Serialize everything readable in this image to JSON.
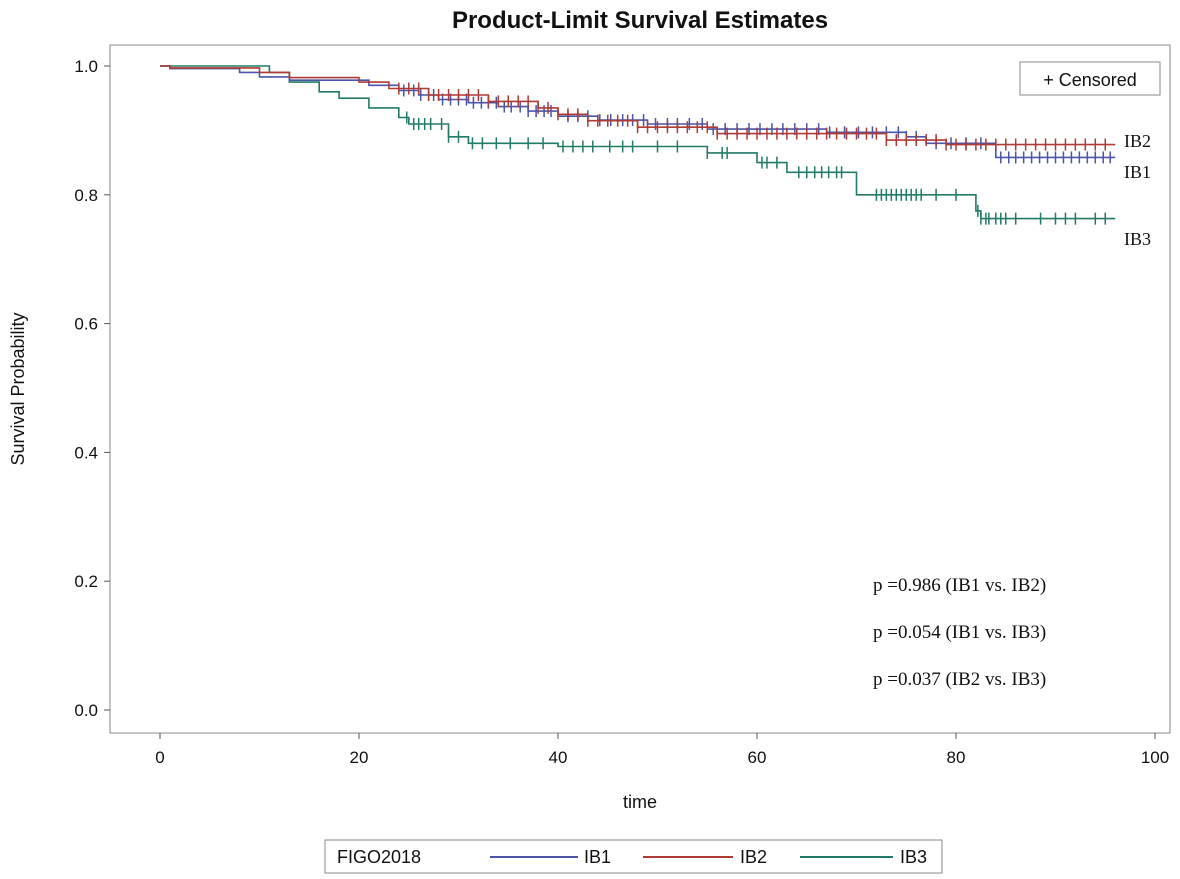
{
  "chart_data": {
    "type": "line",
    "title": "Product-Limit Survival Estimates",
    "xlabel": "time",
    "ylabel": "Survival Probability",
    "xlim": [
      0,
      100
    ],
    "ylim": [
      0,
      1
    ],
    "x_ticks": [
      0,
      20,
      40,
      60,
      80,
      100
    ],
    "x_tick_labels": [
      "0",
      "20",
      "40",
      "60",
      "80",
      "100"
    ],
    "y_ticks": [
      0,
      0.2,
      0.4,
      0.6,
      0.8,
      1.0
    ],
    "y_tick_labels": [
      "0.0",
      "0.2",
      "0.4",
      "0.6",
      "0.8",
      "1.0"
    ],
    "censored_legend": "+ Censored",
    "legend_title": "FIGO2018",
    "legend_placement": "bottom",
    "annotations": [
      "p =0.986 (IB1 vs. IB2)",
      "p =0.054 (IB1 vs. IB3)",
      "p =0.037 (IB2 vs. IB3)"
    ],
    "series": [
      {
        "name": "IB1",
        "color": "#4a55a8",
        "steps": [
          [
            0,
            1.0
          ],
          [
            1,
            0.996
          ],
          [
            8,
            0.99
          ],
          [
            10,
            0.983
          ],
          [
            13,
            0.978
          ],
          [
            21,
            0.97
          ],
          [
            24,
            0.962
          ],
          [
            26,
            0.955
          ],
          [
            28,
            0.948
          ],
          [
            31,
            0.943
          ],
          [
            34,
            0.937
          ],
          [
            37,
            0.93
          ],
          [
            40,
            0.922
          ],
          [
            44,
            0.916
          ],
          [
            49,
            0.91
          ],
          [
            55,
            0.902
          ],
          [
            67,
            0.897
          ],
          [
            75,
            0.89
          ],
          [
            77,
            0.88
          ],
          [
            84,
            0.858
          ],
          [
            96,
            0.858
          ]
        ],
        "censored": [
          24.5,
          25.5,
          26.2,
          27,
          27.5,
          28.4,
          29.2,
          30,
          30.8,
          31.5,
          32.3,
          33,
          33.8,
          34.6,
          35.3,
          36.2,
          37,
          37.8,
          38.6,
          39.3,
          41,
          42,
          43,
          44.2,
          45.3,
          46.5,
          47.5,
          48.6,
          49.8,
          51,
          52,
          53.2,
          54.5,
          55.6,
          56.8,
          58,
          59.2,
          60.3,
          61.5,
          62.6,
          63.8,
          65,
          66.2,
          67.3,
          68.8,
          70.2,
          71.6,
          73,
          74.2,
          75,
          76,
          78,
          79.5,
          81,
          82.5,
          84.5,
          85.3,
          86,
          86.8,
          87.6,
          88.4,
          89.2,
          90,
          90.8,
          91.6,
          92.4,
          93.2,
          94,
          94.8,
          95.5
        ]
      },
      {
        "name": "IB2",
        "color": "#b03a34",
        "steps": [
          [
            0,
            1.0
          ],
          [
            1,
            0.997
          ],
          [
            10,
            0.99
          ],
          [
            13,
            0.982
          ],
          [
            20,
            0.975
          ],
          [
            23,
            0.965
          ],
          [
            27,
            0.955
          ],
          [
            33,
            0.945
          ],
          [
            38,
            0.935
          ],
          [
            40,
            0.925
          ],
          [
            43,
            0.915
          ],
          [
            48,
            0.905
          ],
          [
            56,
            0.895
          ],
          [
            73,
            0.885
          ],
          [
            79,
            0.878
          ],
          [
            96,
            0.878
          ]
        ],
        "censored": [
          24,
          25,
          26,
          27,
          28,
          29,
          30,
          31,
          32,
          33,
          34,
          35,
          36,
          37,
          38,
          39,
          40,
          41,
          42,
          43,
          44,
          45,
          46,
          47,
          48,
          49,
          50,
          51,
          52,
          53,
          54,
          55,
          56,
          57,
          58,
          59,
          60,
          61,
          62,
          63,
          64,
          65,
          66,
          67,
          68,
          69,
          70,
          71,
          72,
          73,
          74,
          75,
          76,
          77,
          78,
          79,
          80,
          81,
          82,
          83,
          84,
          85,
          86,
          87,
          88,
          89,
          90,
          91,
          92,
          93,
          94,
          95
        ]
      },
      {
        "name": "IB3",
        "color": "#227a68",
        "steps": [
          [
            0,
            1.0
          ],
          [
            11,
            0.99
          ],
          [
            13,
            0.975
          ],
          [
            16,
            0.96
          ],
          [
            18,
            0.95
          ],
          [
            21,
            0.935
          ],
          [
            24,
            0.92
          ],
          [
            25,
            0.91
          ],
          [
            29,
            0.89
          ],
          [
            31,
            0.88
          ],
          [
            40,
            0.875
          ],
          [
            55,
            0.865
          ],
          [
            60,
            0.85
          ],
          [
            63,
            0.835
          ],
          [
            70,
            0.8
          ],
          [
            82,
            0.775
          ],
          [
            82.5,
            0.763
          ],
          [
            96,
            0.763
          ]
        ],
        "censored": [
          24.8,
          25.5,
          26,
          26.6,
          27.2,
          28.3,
          29,
          30,
          31.4,
          32.4,
          33.8,
          35.2,
          37,
          38.5,
          40.5,
          41.5,
          42.5,
          43.5,
          45.2,
          46.5,
          47.5,
          50,
          52,
          55,
          56.5,
          57,
          60.5,
          61,
          62,
          64.2,
          65,
          65.8,
          66.5,
          67.2,
          68,
          68.5,
          72,
          72.5,
          73,
          73.5,
          74,
          74.5,
          75,
          75.5,
          76,
          76.5,
          78,
          80,
          82.2,
          82.5,
          83,
          83.3,
          84,
          84.5,
          85,
          86,
          88.5,
          90,
          91,
          92,
          94,
          95
        ]
      }
    ],
    "end_labels": [
      "IB2",
      "IB1",
      "IB3"
    ]
  }
}
